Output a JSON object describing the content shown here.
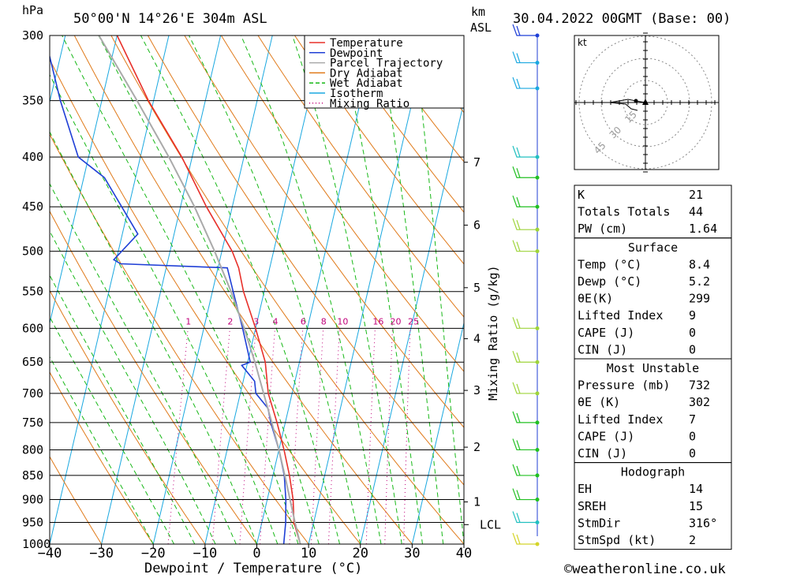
{
  "header": {
    "location": "50°00'N 14°26'E 304m ASL",
    "datetime": "30.04.2022 00GMT (Base: 00)",
    "pressure_unit": "hPa",
    "km_unit": "km",
    "asl_label": "ASL"
  },
  "footer": {
    "copyright": "©weatheronline.co.uk"
  },
  "axes": {
    "xlabel": "Dewpoint / Temperature (°C)",
    "mixing_label": "Mixing Ratio (g/kg)",
    "x_ticks": [
      "−40",
      "−30",
      "−20",
      "−10",
      "0",
      "10",
      "20",
      "30",
      "40"
    ],
    "p_ticks": [
      "300",
      "350",
      "400",
      "450",
      "500",
      "550",
      "600",
      "650",
      "700",
      "750",
      "800",
      "850",
      "900",
      "950",
      "1000"
    ],
    "km_ticks": [
      "7",
      "6",
      "5",
      "4",
      "3",
      "2",
      "1"
    ],
    "lcl_label": "LCL",
    "mixing_ratio_labels": [
      "1",
      "2",
      "3",
      "4",
      "6",
      "8",
      "10",
      "16",
      "20",
      "25"
    ],
    "kt_label": "kt",
    "hodo_rings": [
      "15",
      "30",
      "45"
    ]
  },
  "legend": [
    {
      "label": "Temperature",
      "color": "#e8302a"
    },
    {
      "label": "Dewpoint",
      "color": "#1f3fd6"
    },
    {
      "label": "Parcel Trajectory",
      "color": "#aaaaaa"
    },
    {
      "label": "Dry Adiabat",
      "color": "#e07a1a"
    },
    {
      "label": "Wet Adiabat",
      "color": "#17b817"
    },
    {
      "label": "Isotherm",
      "color": "#1aa8e0"
    },
    {
      "label": "Mixing Ratio",
      "color": "#c0007a"
    }
  ],
  "stats": {
    "group1": [
      {
        "label": "K",
        "value": "21"
      },
      {
        "label": "Totals Totals",
        "value": "44"
      },
      {
        "label": "PW (cm)",
        "value": "1.64"
      }
    ],
    "surface": {
      "title": "Surface",
      "rows": [
        {
          "label": "Temp (°C)",
          "value": "8.4"
        },
        {
          "label": "Dewp (°C)",
          "value": "5.2"
        },
        {
          "label": "θE(K)",
          "value": "299"
        },
        {
          "label": "Lifted Index",
          "value": "9"
        },
        {
          "label": "CAPE (J)",
          "value": "0"
        },
        {
          "label": "CIN (J)",
          "value": "0"
        }
      ]
    },
    "most_unstable": {
      "title": "Most Unstable",
      "rows": [
        {
          "label": "Pressure (mb)",
          "value": "732"
        },
        {
          "label": "θE (K)",
          "value": "302"
        },
        {
          "label": "Lifted Index",
          "value": "7"
        },
        {
          "label": "CAPE (J)",
          "value": "0"
        },
        {
          "label": "CIN (J)",
          "value": "0"
        }
      ]
    },
    "hodograph": {
      "title": "Hodograph",
      "rows": [
        {
          "label": "EH",
          "value": "14"
        },
        {
          "label": "SREH",
          "value": "15"
        },
        {
          "label": "StmDir",
          "value": "316°"
        },
        {
          "label": "StmSpd (kt)",
          "value": "2"
        }
      ]
    }
  },
  "chart_data": {
    "type": "line",
    "title": "50°00'N 14°26'E 304m ASL",
    "xlabel": "Dewpoint / Temperature (°C)",
    "ylabel": "hPa",
    "xlim": [
      -40,
      40
    ],
    "ylim": [
      1000,
      300
    ],
    "skew_deg_per_log10p": 44,
    "series": [
      {
        "name": "Temperature",
        "color": "#e8302a",
        "p": [
          1000,
          950,
          900,
          850,
          800,
          750,
          700,
          650,
          600,
          550,
          520,
          500,
          450,
          400,
          350,
          300
        ],
        "t": [
          8.4,
          6.2,
          5.0,
          3.2,
          1.0,
          -1.6,
          -4.6,
          -6.6,
          -10.0,
          -14.0,
          -16.0,
          -18.0,
          -25.0,
          -32.0,
          -41.0,
          -50.0
        ]
      },
      {
        "name": "Dewpoint",
        "color": "#1f3fd6",
        "p": [
          1000,
          950,
          900,
          850,
          800,
          750,
          725,
          700,
          680,
          655,
          650,
          600,
          550,
          520,
          515,
          510,
          480,
          420,
          400,
          350,
          300
        ],
        "t": [
          5.2,
          4.6,
          3.6,
          2.2,
          0.0,
          -2.8,
          -4.0,
          -7.0,
          -7.8,
          -11.0,
          -9.5,
          -12.5,
          -16.0,
          -18.2,
          -39.0,
          -40.5,
          -37.0,
          -46.0,
          -52.0,
          -58.0,
          -64.0
        ]
      },
      {
        "name": "Parcel Trajectory",
        "color": "#aaaaaa",
        "p": [
          1000,
          950,
          900,
          850,
          800,
          750,
          700,
          650,
          600,
          550,
          500,
          450,
          400,
          350,
          300
        ],
        "t": [
          8.4,
          6.4,
          4.4,
          2.3,
          0.0,
          -2.6,
          -5.5,
          -8.6,
          -12.2,
          -16.4,
          -21.4,
          -27.3,
          -34.5,
          -43.2,
          -53.5
        ]
      }
    ],
    "winds": [
      {
        "p": 1000,
        "color": "#d4d42a"
      },
      {
        "p": 950,
        "color": "#22c0c0"
      },
      {
        "p": 900,
        "color": "#22c022"
      },
      {
        "p": 850,
        "color": "#22c022"
      },
      {
        "p": 800,
        "color": "#22c022"
      },
      {
        "p": 750,
        "color": "#22c022"
      },
      {
        "p": 700,
        "color": "#9ed43a"
      },
      {
        "p": 650,
        "color": "#9ed43a"
      },
      {
        "p": 600,
        "color": "#9ed43a"
      },
      {
        "p": 500,
        "color": "#9ed43a"
      },
      {
        "p": 475,
        "color": "#9ed43a"
      },
      {
        "p": 450,
        "color": "#22c022"
      },
      {
        "p": 420,
        "color": "#22c022"
      },
      {
        "p": 400,
        "color": "#22c0c0"
      },
      {
        "p": 340,
        "color": "#1aa8e0"
      },
      {
        "p": 320,
        "color": "#1aa8e0"
      },
      {
        "p": 300,
        "color": "#1f3fd6"
      }
    ],
    "km_levels": [
      {
        "km": "7",
        "p": 405
      },
      {
        "km": "6",
        "p": 470
      },
      {
        "km": "5",
        "p": 545
      },
      {
        "km": "4",
        "p": 615
      },
      {
        "km": "3",
        "p": 695
      },
      {
        "km": "2",
        "p": 795
      },
      {
        "km": "1",
        "p": 905
      }
    ],
    "lcl_p": 955
  }
}
